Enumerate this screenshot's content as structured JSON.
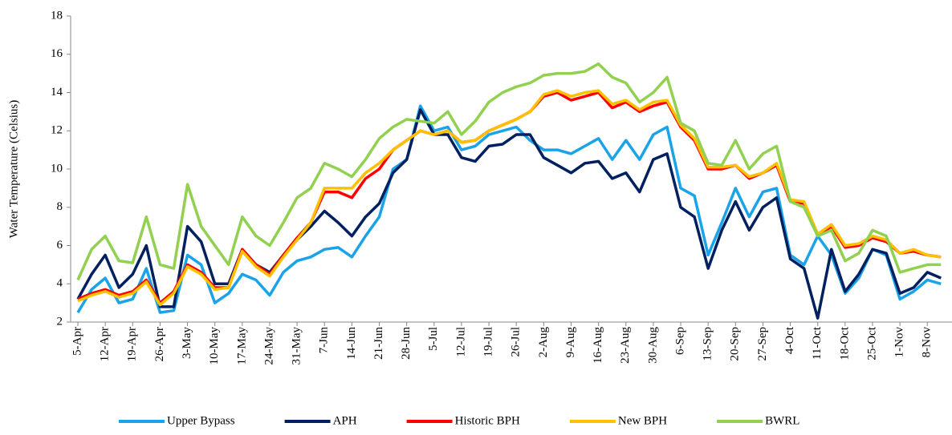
{
  "chart_data": {
    "type": "line",
    "y_label": "Water Temperature (Celsius)",
    "categories": [
      "5-Apr",
      null,
      "12-Apr",
      null,
      "19-Apr",
      null,
      "26-Apr",
      null,
      "3-May",
      null,
      "10-May",
      null,
      "17-May",
      null,
      "24-May",
      null,
      "31-May",
      null,
      "7-Jun",
      null,
      "14-Jun",
      null,
      "21-Jun",
      null,
      "28-Jun",
      null,
      "5-Jul",
      null,
      "12-Jul",
      null,
      "19-Jul",
      null,
      "26-Jul",
      null,
      "2-Aug",
      null,
      "9-Aug",
      null,
      "16-Aug",
      null,
      "23-Aug",
      null,
      "30-Aug",
      null,
      "6-Sep",
      null,
      "13-Sep",
      null,
      "20-Sep",
      null,
      "27-Sep",
      null,
      "4-Oct",
      null,
      "11-Oct",
      null,
      "18-Oct",
      null,
      "25-Oct",
      null,
      "1-Nov",
      null,
      "8-Nov",
      null
    ],
    "series": [
      {
        "name": "Upper Bypass",
        "color": "#1aa3e8",
        "values": [
          2.5,
          3.7,
          4.3,
          3.0,
          3.2,
          4.8,
          2.5,
          2.6,
          5.5,
          5.0,
          3.0,
          3.5,
          4.5,
          4.2,
          3.4,
          4.6,
          5.2,
          5.4,
          5.8,
          5.9,
          5.4,
          6.5,
          7.5,
          10.0,
          10.5,
          13.3,
          12.0,
          12.2,
          11.0,
          11.2,
          11.8,
          12.0,
          12.2,
          11.5,
          11.0,
          11.0,
          10.8,
          11.2,
          11.6,
          10.5,
          11.5,
          10.5,
          11.8,
          12.2,
          9.0,
          8.6,
          5.5,
          7.2,
          9.0,
          7.5,
          8.8,
          9.0,
          5.5,
          5.0,
          6.5,
          5.5,
          3.5,
          4.3,
          5.8,
          5.5,
          3.2,
          3.6,
          4.2,
          4.0
        ]
      },
      {
        "name": "APH",
        "color": "#002060",
        "values": [
          3.2,
          4.5,
          5.5,
          3.8,
          4.5,
          6.0,
          2.8,
          2.8,
          7.0,
          6.2,
          4.0,
          4.0,
          5.8,
          5.0,
          4.6,
          5.5,
          6.3,
          7.0,
          7.8,
          7.2,
          6.5,
          7.5,
          8.2,
          9.8,
          10.5,
          13.1,
          11.8,
          11.8,
          10.6,
          10.4,
          11.2,
          11.3,
          11.8,
          11.8,
          10.6,
          10.2,
          9.8,
          10.3,
          10.4,
          9.5,
          9.8,
          8.8,
          10.5,
          10.8,
          8.0,
          7.5,
          4.8,
          6.8,
          8.3,
          6.8,
          8.0,
          8.5,
          5.3,
          4.8,
          2.2,
          5.8,
          3.6,
          4.5,
          5.8,
          5.6,
          3.5,
          3.8,
          4.6,
          4.3
        ]
      },
      {
        "name": "Historic BPH",
        "color": "#ff0000",
        "values": [
          3.2,
          3.5,
          3.7,
          3.4,
          3.6,
          4.2,
          3.0,
          3.6,
          5.0,
          4.6,
          3.8,
          3.8,
          5.8,
          5.0,
          4.5,
          5.5,
          6.4,
          7.2,
          8.8,
          8.8,
          8.5,
          9.5,
          10.0,
          11.0,
          11.5,
          12.0,
          11.8,
          12.0,
          11.4,
          11.5,
          12.0,
          12.3,
          12.6,
          13.0,
          13.8,
          14.0,
          13.6,
          13.8,
          14.0,
          13.2,
          13.5,
          13.0,
          13.3,
          13.5,
          12.2,
          11.5,
          10.0,
          10.0,
          10.2,
          9.5,
          9.8,
          10.2,
          8.3,
          8.2,
          6.5,
          7.0,
          5.9,
          6.0,
          6.4,
          6.2,
          5.6,
          5.7,
          5.5,
          5.4
        ]
      },
      {
        "name": "New BPH",
        "color": "#ffc000",
        "values": [
          3.1,
          3.4,
          3.6,
          3.3,
          3.5,
          4.1,
          2.9,
          3.5,
          4.9,
          4.5,
          3.7,
          3.8,
          5.7,
          4.9,
          4.4,
          5.4,
          6.3,
          7.2,
          9.0,
          9.0,
          9.0,
          9.8,
          10.3,
          11.0,
          11.5,
          12.0,
          11.8,
          12.0,
          11.4,
          11.5,
          12.0,
          12.3,
          12.6,
          13.0,
          13.9,
          14.1,
          13.8,
          14.0,
          14.1,
          13.4,
          13.6,
          13.1,
          13.5,
          13.6,
          12.3,
          11.6,
          10.1,
          10.1,
          10.2,
          9.6,
          9.8,
          10.3,
          8.4,
          8.3,
          6.6,
          7.1,
          6.0,
          6.1,
          6.5,
          6.3,
          5.6,
          5.8,
          5.5,
          5.4
        ]
      },
      {
        "name": "BWRL",
        "color": "#92d050",
        "values": [
          4.2,
          5.8,
          6.5,
          5.2,
          5.1,
          7.5,
          5.0,
          4.8,
          9.2,
          7.0,
          6.0,
          5.0,
          7.5,
          6.5,
          6.0,
          7.2,
          8.5,
          9.0,
          10.3,
          10.0,
          9.6,
          10.5,
          11.6,
          12.2,
          12.6,
          12.5,
          12.4,
          13.0,
          11.8,
          12.5,
          13.5,
          14.0,
          14.3,
          14.5,
          14.9,
          15.0,
          15.0,
          15.1,
          15.5,
          14.8,
          14.5,
          13.5,
          14.0,
          14.8,
          12.4,
          12.0,
          10.3,
          10.2,
          11.5,
          10.0,
          10.8,
          11.2,
          8.3,
          8.0,
          6.5,
          6.8,
          5.2,
          5.6,
          6.8,
          6.5,
          4.6,
          4.8,
          5.0,
          5.0
        ]
      }
    ],
    "ylim": [
      2,
      18
    ],
    "yticks": [
      2,
      4,
      6,
      8,
      10,
      12,
      14,
      16,
      18
    ],
    "grid": false
  }
}
